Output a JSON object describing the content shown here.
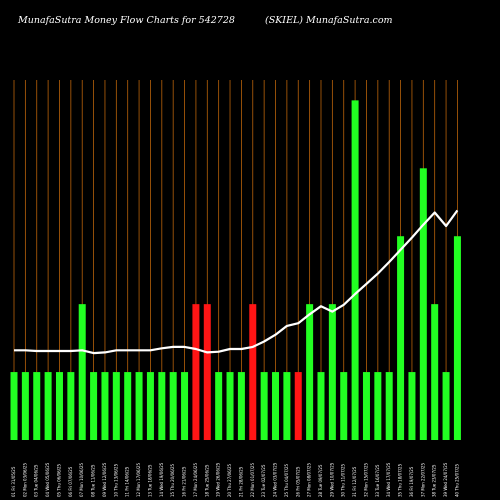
{
  "header": {
    "title_left": "MunafaSutra  Money Flow  Charts for 542728",
    "title_right": "(SKIEL) MunafaSutra.com"
  },
  "colors": {
    "background": "#000000",
    "grid": "#b8620a",
    "up": "#22ff22",
    "down": "#ff1515",
    "line": "#ffffff",
    "text": "#ffffff"
  },
  "chart_data": {
    "type": "bar",
    "grid": "vertical",
    "categories": [
      "01 Fri 31/05/25",
      "02 Mon 03/06/25",
      "03 Tue 04/06/25",
      "04 Wed 05/06/25",
      "05 Thu 06/06/25",
      "06 Fri 07/06/25",
      "07 Mon 10/06/25",
      "08 Tue 11/06/25",
      "09 Wed 12/06/25",
      "10 Thu 13/06/25",
      "11 Fri 14/06/25",
      "12 Mon 17/06/25",
      "13 Tue 18/06/25",
      "14 Wed 19/06/25",
      "15 Thu 20/06/25",
      "16 Fri 21/06/25",
      "17 Mon 24/06/25",
      "18 Tue 25/06/25",
      "19 Wed 26/06/25",
      "20 Thu 27/06/25",
      "21 Fri 28/06/25",
      "22 Mon 01/07/25",
      "23 Tue 02/07/25",
      "24 Wed 03/07/25",
      "25 Thu 04/07/25",
      "26 Fri 05/07/25",
      "27 Mon 08/07/25",
      "28 Tue 09/07/25",
      "29 Wed 10/07/25",
      "30 Thu 11/07/25",
      "31 Fri 12/07/25",
      "32 Mon 15/07/25",
      "33 Tue 16/07/25",
      "34 Wed 17/07/25",
      "35 Thu 18/07/25",
      "36 Fri 19/07/25",
      "37 Mon 22/07/25",
      "38 Tue 23/07/25",
      "39 Wed 24/07/25",
      "40 Thu 25/07/25"
    ],
    "values": [
      1,
      1,
      1,
      1,
      1,
      1,
      2,
      1,
      1,
      1,
      1,
      1,
      1,
      1,
      1,
      1,
      2,
      2,
      1,
      1,
      1,
      2,
      1,
      1,
      1,
      1,
      2,
      1,
      2,
      1,
      5,
      1,
      1,
      1,
      3,
      1,
      4,
      2,
      1,
      3
    ],
    "directions": [
      "up",
      "up",
      "up",
      "up",
      "up",
      "up",
      "up",
      "up",
      "up",
      "up",
      "up",
      "up",
      "up",
      "up",
      "up",
      "up",
      "down",
      "down",
      "up",
      "up",
      "up",
      "down",
      "up",
      "up",
      "up",
      "down",
      "up",
      "up",
      "up",
      "up",
      "up",
      "up",
      "up",
      "up",
      "up",
      "up",
      "up",
      "up",
      "up",
      "up"
    ],
    "line_values": [
      1.32,
      1.32,
      1.31,
      1.31,
      1.31,
      1.31,
      1.32,
      1.28,
      1.29,
      1.32,
      1.32,
      1.32,
      1.32,
      1.35,
      1.37,
      1.37,
      1.34,
      1.29,
      1.3,
      1.34,
      1.34,
      1.37,
      1.45,
      1.55,
      1.68,
      1.72,
      1.85,
      1.97,
      1.89,
      1.99,
      2.15,
      2.3,
      2.45,
      2.62,
      2.8,
      2.98,
      3.17,
      3.35,
      3.15,
      3.38
    ],
    "ylim": [
      0,
      5.3
    ]
  }
}
